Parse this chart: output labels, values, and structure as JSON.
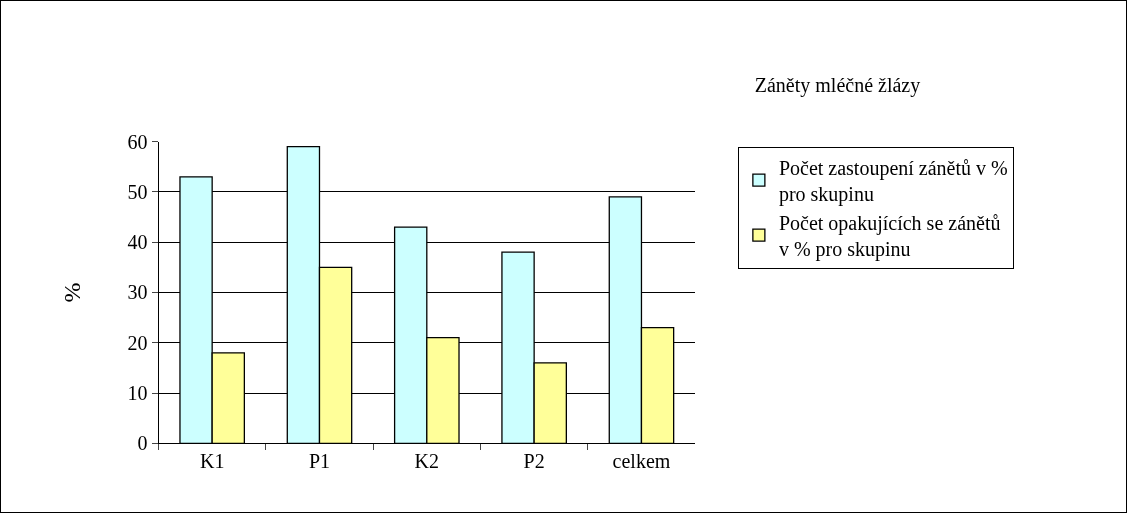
{
  "chart_data": {
    "type": "bar",
    "title": "Záněty mléčné žlázy",
    "ylabel": "%",
    "categories": [
      "K1",
      "P1",
      "K2",
      "P2",
      "celkem"
    ],
    "series": [
      {
        "name": "Počet zastoupení zánětů v % pro skupinu",
        "color": "#ccffff",
        "values": [
          53,
          59,
          43,
          38,
          49
        ]
      },
      {
        "name": "Počet opakujících se zánětů v % pro skupinu",
        "color": "#ffff99",
        "values": [
          18,
          35,
          21,
          16,
          23
        ]
      }
    ],
    "ylim": [
      0,
      60
    ],
    "yticks": [
      0,
      10,
      20,
      30,
      40,
      50,
      60
    ],
    "grid": "y",
    "legend": "right"
  }
}
